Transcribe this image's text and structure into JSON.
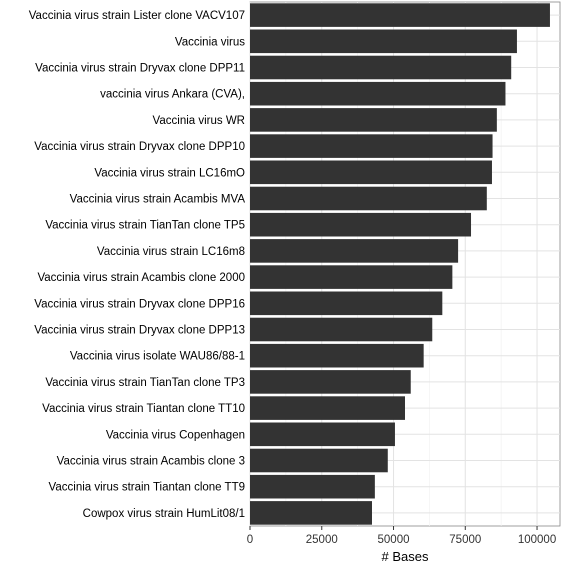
{
  "chart_data": {
    "type": "bar",
    "orientation": "horizontal",
    "title": "",
    "xlabel": "# Bases",
    "ylabel": "",
    "xlim": [
      0,
      108000
    ],
    "xticks": [
      0,
      25000,
      50000,
      75000,
      100000
    ],
    "xtick_labels": [
      "0",
      "25000",
      "50000",
      "75000",
      "100000"
    ],
    "grid": true,
    "legend": "none",
    "categories": [
      "Vaccinia virus strain Lister clone VACV107",
      "Vaccinia virus",
      "Vaccinia virus strain Dryvax clone DPP11",
      "vaccinia virus Ankara (CVA),",
      "Vaccinia virus WR",
      "Vaccinia virus strain Dryvax clone DPP10",
      "Vaccinia virus strain LC16mO",
      "Vaccinia virus strain Acambis MVA",
      "Vaccinia virus strain TianTan clone TP5",
      "Vaccinia virus strain LC16m8",
      "Vaccinia virus strain Acambis clone 2000",
      "Vaccinia virus strain Dryvax clone DPP16",
      "Vaccinia virus strain Dryvax clone DPP13",
      "Vaccinia virus isolate WAU86/88-1",
      "Vaccinia virus strain TianTan clone TP3",
      "Vaccinia virus strain Tiantan clone TT10",
      "Vaccinia virus Copenhagen",
      "Vaccinia virus strain Acambis clone 3",
      "Vaccinia virus strain Tiantan clone TT9",
      "Cowpox virus strain HumLit08/1"
    ],
    "values": [
      104500,
      93000,
      91000,
      89000,
      86000,
      84500,
      84300,
      82500,
      77000,
      72500,
      70500,
      67000,
      63500,
      60500,
      56000,
      54000,
      50500,
      48000,
      43500,
      42500
    ]
  },
  "colors": {
    "bar": "#333333",
    "panel": "#ffffff",
    "grid_major": "#e3e3e3",
    "grid_minor": "#f2f2f2",
    "panel_border": "#888888"
  }
}
